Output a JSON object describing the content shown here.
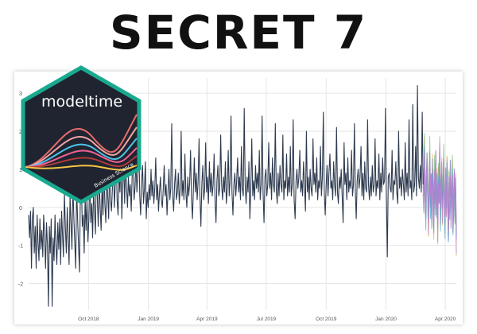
{
  "title": "SECRET 7",
  "logo": {
    "name": "modeltime",
    "tagline": "Business Science",
    "colors": {
      "background": "#1f2430",
      "border": "#19a98f",
      "curves": [
        "#e86b6b",
        "#f2a3a3",
        "#4fc3e8",
        "#f06292",
        "#b23a3a",
        "#f6c445"
      ]
    }
  },
  "chart_data": {
    "type": "line",
    "title": "",
    "xlabel": "",
    "ylabel": "",
    "ylim": [
      -2.7,
      3.4
    ],
    "y_ticks": [
      -2,
      -1,
      0,
      1,
      2,
      3
    ],
    "x_ticks": [
      "Oct 2018",
      "Jan 2019",
      "Apr 2019",
      "Jul 2019",
      "Oct 2019",
      "Jan 2020",
      "Apr 2020"
    ],
    "grid": true,
    "legend": "none",
    "colors": {
      "actual": "#2d3a4f",
      "grid": "#e6e6e6",
      "forecast": [
        "#e87a7a",
        "#f2b36a",
        "#d6c84a",
        "#7cc47f",
        "#4fb3c9",
        "#7b8fd6",
        "#c77ad6"
      ]
    },
    "series": [
      {
        "kind": "actual",
        "start": "2018-07-01",
        "step_days": 1,
        "values": [
          -0.2,
          -0.8,
          -0.1,
          -1.6,
          -0.3,
          0.0,
          -1.2,
          -0.5,
          -1.6,
          -0.2,
          -0.9,
          -1.4,
          -0.3,
          -1.1,
          -0.6,
          -1.3,
          -0.2,
          -0.7,
          -1.6,
          -0.4,
          -1.0,
          -2.6,
          -0.5,
          -1.2,
          -0.3,
          -2.6,
          -0.8,
          -1.4,
          -0.2,
          -1.0,
          -1.5,
          -0.4,
          -1.1,
          -0.3,
          -1.5,
          -0.1,
          -0.7,
          -1.3,
          0.4,
          -0.5,
          -1.2,
          0.0,
          -0.8,
          -1.5,
          0.3,
          -0.4,
          -1.1,
          0.6,
          -0.2,
          -0.9,
          -1.6,
          0.5,
          -0.3,
          -1.0,
          -1.7,
          0.4,
          0.8,
          -0.5,
          -0.2,
          -1.2,
          0.3,
          -0.6,
          0.2,
          -0.9,
          -0.3,
          0.9,
          -0.4,
          0.1,
          -0.8,
          0.5,
          -0.1,
          -0.7,
          1.3,
          0.2,
          -0.5,
          0.7,
          0.0,
          -0.6,
          0.6,
          -0.2,
          1.0,
          0.1,
          -0.4,
          0.8,
          0.3,
          -0.3,
          1.2,
          0.2,
          -0.1,
          0.5,
          1.4,
          0.0,
          0.6,
          1.5,
          0.2,
          -0.2,
          0.9,
          0.4,
          1.3,
          -0.3,
          0.6,
          1.1,
          0.1,
          1.3,
          0.5,
          0.0,
          0.8,
          0.3,
          0.6,
          -0.1,
          0.9,
          1.4,
          0.2,
          0.5,
          1.2,
          0.4,
          0.9,
          1.7,
          0.3,
          -0.2,
          0.7,
          1.1,
          0.1,
          0.5,
          1.2,
          -0.3,
          0.4,
          0.0,
          0.6,
          0.2,
          1.0,
          0.3,
          0.7,
          0.1,
          0.5,
          1.3,
          0.2,
          0.6,
          -0.1,
          0.4,
          0.8,
          0.2,
          0.0,
          0.5,
          1.1,
          0.3,
          0.6,
          -0.2,
          0.4,
          1.0,
          0.2,
          0.5,
          2.2,
          0.3,
          -0.1,
          0.6,
          1.0,
          0.2,
          0.4,
          0.9,
          0.1,
          0.5,
          2.0,
          0.3,
          0.7,
          0.2,
          1.4,
          0.4,
          0.0,
          0.8,
          0.3,
          0.6,
          1.5,
          0.2,
          -0.3,
          0.5,
          1.3,
          0.4,
          0.9,
          0.2,
          0.7,
          1.8,
          0.3,
          -0.5,
          0.6,
          1.1,
          0.2,
          0.5,
          1.7,
          0.4,
          0.8,
          0.1,
          1.2,
          0.4,
          0.9,
          0.3,
          0.6,
          1.4,
          0.2,
          -0.4,
          0.7,
          1.1,
          0.3,
          0.5,
          1.9,
          0.6,
          0.2,
          0.8,
          0.4,
          1.2,
          0.1,
          0.5,
          1.5,
          0.3,
          0.7,
          2.4,
          0.4,
          -0.2,
          0.6,
          0.9,
          0.3,
          0.7,
          1.3,
          0.4,
          0.8,
          0.2,
          1.6,
          0.5,
          0.3,
          2.6,
          0.6,
          0.1,
          0.8,
          0.4,
          1.2,
          -0.3,
          0.5,
          1.8,
          0.3,
          0.7,
          0.2,
          1.1,
          0.5,
          0.9,
          0.4,
          1.5,
          0.2,
          0.6,
          2.4,
          0.4,
          -0.4,
          0.8,
          1.0,
          0.3,
          0.6,
          1.7,
          0.5,
          0.9,
          0.2,
          1.3,
          0.6,
          0.4,
          2.2,
          0.5,
          0.1,
          0.9,
          0.3,
          1.1,
          0.6,
          0.4,
          1.9,
          0.2,
          0.7,
          0.5,
          1.4,
          0.3,
          0.8,
          0.4,
          1.6,
          0.3,
          0.6,
          2.3,
          0.2,
          -0.3,
          0.7,
          1.0,
          0.5,
          0.8,
          1.5,
          0.4,
          0.7,
          0.3,
          1.2,
          0.6,
          -0.1,
          2.0,
          0.4,
          0.8,
          0.2,
          1.0,
          0.5,
          0.3,
          1.8,
          0.6,
          0.9,
          0.4,
          1.3,
          0.2,
          0.7,
          0.5,
          1.6,
          0.3,
          0.8,
          2.5,
          0.4,
          -0.2,
          0.6,
          1.1,
          0.3,
          0.9,
          1.4,
          0.5,
          0.7,
          0.2,
          1.2,
          0.6,
          0.3,
          2.1,
          0.4,
          0.1,
          0.8,
          0.5,
          1.0,
          0.3,
          -0.4,
          1.7,
          0.6,
          0.9,
          0.2,
          1.3,
          0.4,
          0.7,
          0.5,
          1.5,
          0.3,
          0.6,
          2.2,
          0.4,
          -0.3,
          0.7,
          1.0,
          0.5,
          0.8,
          1.6,
          0.3,
          0.9,
          0.2,
          1.2,
          0.5,
          0.4,
          2.3,
          0.6,
          0.2,
          0.8,
          0.3,
          1.1,
          0.4,
          0.6,
          1.8,
          0.3,
          0.7,
          0.5,
          1.4,
          0.2,
          0.9,
          0.4,
          1.3,
          0.6,
          0.7,
          2.6,
          0.3,
          -1.3,
          0.8,
          0.9,
          0.5,
          0.4,
          1.5,
          0.2,
          0.7,
          0.6,
          1.2,
          0.4,
          0.1,
          2.0,
          0.5,
          0.8,
          0.3,
          1.0,
          0.6,
          0.2,
          1.7,
          0.4,
          0.9,
          0.3,
          2.3,
          0.5,
          0.7,
          0.2,
          2.7,
          0.4,
          0.6,
          1.6,
          0.3,
          3.2,
          0.8,
          0.5,
          1.1,
          0.4,
          2.5,
          0.6
        ],
        "notes": ""
      },
      {
        "kind": "forecast",
        "start": "2020-02-27",
        "step_days": 1,
        "values": [
          0.6,
          0.2,
          1.6,
          0.4,
          -0.2,
          0.8,
          1.1,
          0.3,
          -0.4,
          0.5,
          1.4,
          0.1,
          0.7,
          -0.3,
          1.0,
          0.4,
          -0.5,
          0.9,
          0.2,
          1.3,
          0.0,
          0.6,
          -0.6,
          0.8,
          0.3,
          1.5,
          -0.2,
          0.4,
          0.9,
          -0.1,
          0.5,
          1.2,
          0.2,
          -0.4,
          0.7,
          0.0,
          1.1,
          0.3,
          -0.7,
          0.6,
          0.1,
          0.9,
          -0.3,
          0.4,
          1.0,
          -0.5,
          0.2,
          0.8,
          -0.2,
          0.5,
          -0.9
        ],
        "spread": 0.45,
        "bands": 7
      }
    ]
  }
}
